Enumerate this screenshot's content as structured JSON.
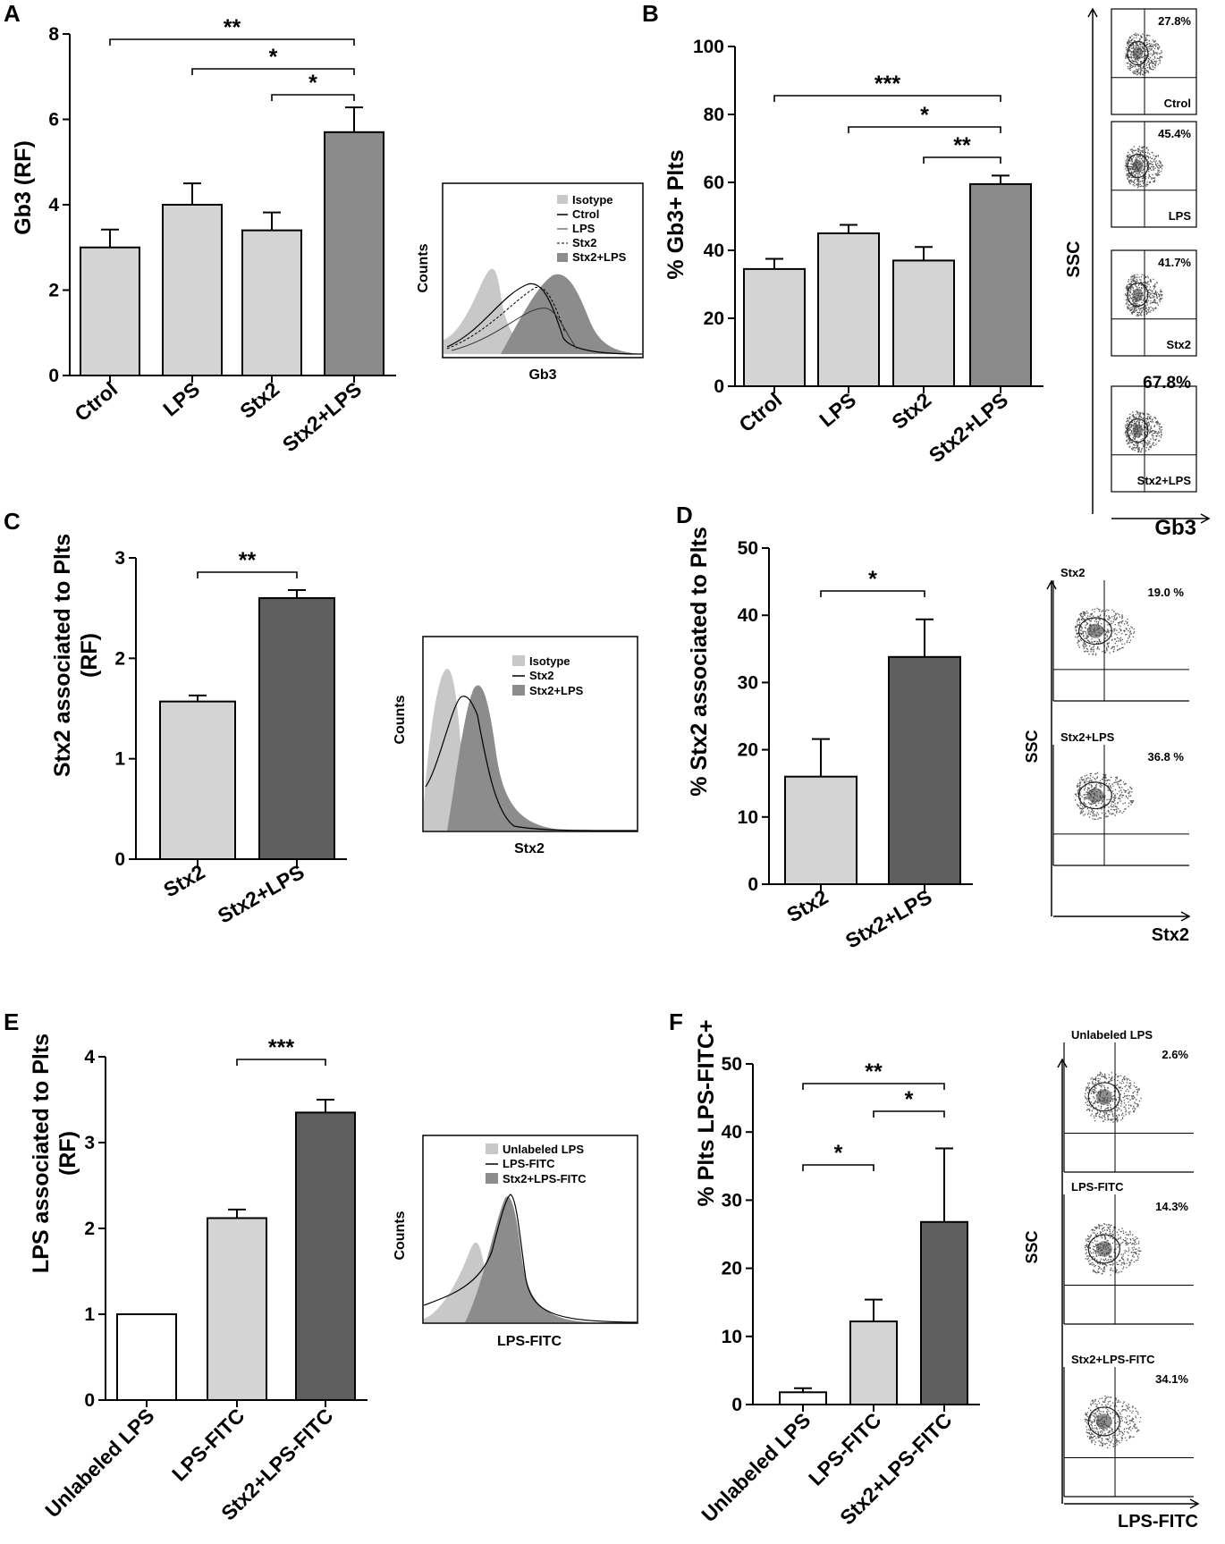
{
  "colors": {
    "light_bar": "#d4d4d4",
    "mid_bar": "#8a8a8a",
    "dark_bar": "#5e5e5e",
    "white_bar": "#ffffff",
    "isotype_fill": "#c8c8c8",
    "stx2lps_fill": "#8c8c8c"
  },
  "chart_data": [
    {
      "panel": "A",
      "type": "bar",
      "ylabel": "Gb3 (RF)",
      "categories": [
        "Ctrol",
        "LPS",
        "Stx2",
        "Stx2+LPS"
      ],
      "values": [
        3.0,
        4.0,
        3.4,
        5.7
      ],
      "errors": [
        0.42,
        0.5,
        0.42,
        0.58
      ],
      "fills": [
        "light",
        "light",
        "light",
        "mid"
      ],
      "ylim": [
        0,
        8
      ],
      "yticks": [
        "0",
        "2",
        "4",
        "6",
        "8"
      ],
      "significance": [
        {
          "from": 0,
          "to": 3,
          "label": "**"
        },
        {
          "from": 1,
          "to": 3,
          "label": "*"
        },
        {
          "from": 2,
          "to": 3,
          "label": "*"
        }
      ]
    },
    {
      "panel": "B",
      "type": "bar",
      "ylabel": "% Gb3+ Plts",
      "categories": [
        "Ctrol",
        "LPS",
        "Stx2",
        "Stx2+LPS"
      ],
      "values": [
        34.5,
        45.0,
        37.0,
        59.5
      ],
      "errors": [
        3.0,
        2.5,
        4.0,
        2.5
      ],
      "fills": [
        "light",
        "light",
        "light",
        "mid"
      ],
      "ylim": [
        0,
        100
      ],
      "yticks": [
        "0",
        "20",
        "40",
        "60",
        "80",
        "100"
      ],
      "significance": [
        {
          "from": 0,
          "to": 3,
          "label": "***"
        },
        {
          "from": 1,
          "to": 3,
          "label": "*"
        },
        {
          "from": 2,
          "to": 3,
          "label": "**"
        }
      ]
    },
    {
      "panel": "C",
      "type": "bar",
      "ylabel_line1": "Stx2 associated to Plts",
      "ylabel_line2": "(RF)",
      "categories": [
        "Stx2",
        "Stx2+LPS"
      ],
      "values": [
        1.57,
        2.6
      ],
      "errors": [
        0.06,
        0.08
      ],
      "fills": [
        "light",
        "dark"
      ],
      "ylim": [
        0,
        3
      ],
      "yticks": [
        "0",
        "1",
        "2",
        "3"
      ],
      "significance": [
        {
          "from": 0,
          "to": 1,
          "label": "**"
        }
      ]
    },
    {
      "panel": "D",
      "type": "bar",
      "ylabel": "% Stx2 associated to Plts",
      "categories": [
        "Stx2",
        "Stx2+LPS"
      ],
      "values": [
        16.0,
        33.8
      ],
      "errors": [
        5.6,
        5.6
      ],
      "fills": [
        "light",
        "dark"
      ],
      "ylim": [
        0,
        50
      ],
      "yticks": [
        "0",
        "10",
        "20",
        "30",
        "40",
        "50"
      ],
      "significance": [
        {
          "from": 0,
          "to": 1,
          "label": "*"
        }
      ]
    },
    {
      "panel": "E",
      "type": "bar",
      "ylabel_line1": "LPS associated to Plts",
      "ylabel_line2": "(RF)",
      "categories": [
        "Unlabeled LPS",
        "LPS-FITC",
        "Stx2+LPS-FITC"
      ],
      "values": [
        1.0,
        2.12,
        3.35
      ],
      "errors": [
        0,
        0.1,
        0.15
      ],
      "fills": [
        "white",
        "light",
        "dark"
      ],
      "ylim": [
        0,
        4
      ],
      "yticks": [
        "0",
        "1",
        "2",
        "3",
        "4"
      ],
      "significance": [
        {
          "from": 1,
          "to": 2,
          "label": "***"
        }
      ]
    },
    {
      "panel": "F",
      "type": "bar",
      "ylabel": "% Plts LPS-FITC+",
      "categories": [
        "Unlabeled LPS",
        "LPS-FITC",
        "Stx2+LPS-FITC"
      ],
      "values": [
        1.8,
        12.2,
        26.8
      ],
      "errors": [
        0.6,
        3.2,
        10.8
      ],
      "fills": [
        "white",
        "light",
        "dark"
      ],
      "ylim": [
        0,
        50
      ],
      "yticks": [
        "0",
        "10",
        "20",
        "30",
        "40",
        "50"
      ],
      "significance": [
        {
          "from": 0,
          "to": 2,
          "label": "**"
        },
        {
          "from": 1,
          "to": 2,
          "label": "*"
        },
        {
          "from": 0,
          "to": 1,
          "label": "*"
        }
      ]
    }
  ],
  "histograms": {
    "A": {
      "ylabel": "Counts",
      "xlabel": "Gb3",
      "legend": [
        "Isotype",
        "Ctrol",
        "LPS",
        "Stx2",
        "Stx2+LPS"
      ]
    },
    "C": {
      "ylabel": "Counts",
      "xlabel": "Stx2",
      "legend": [
        "Isotype",
        "Stx2",
        "Stx2+LPS"
      ]
    },
    "E": {
      "ylabel": "Counts",
      "xlabel": "LPS-FITC",
      "legend": [
        "Unlabeled LPS",
        "LPS-FITC",
        "Stx2+LPS-FITC"
      ]
    }
  },
  "dotplots": {
    "B": {
      "ylabel": "SSC",
      "xlabel": "Gb3",
      "plots": [
        {
          "label": "Ctrol",
          "pct": "27.8%"
        },
        {
          "label": "LPS",
          "pct": "45.4%"
        },
        {
          "label": "Stx2",
          "pct": "41.7%"
        },
        {
          "label": "Stx2+LPS",
          "pct": "67.8%"
        }
      ]
    },
    "D": {
      "ylabel": "SSC",
      "xlabel": "Stx2",
      "plots": [
        {
          "label": "Stx2",
          "pct": "19.0 %"
        },
        {
          "label": "Stx2+LPS",
          "pct": "36.8 %"
        }
      ]
    },
    "F": {
      "ylabel": "SSC",
      "xlabel": "LPS-FITC",
      "plots": [
        {
          "label": "Unlabeled LPS",
          "pct": "2.6%"
        },
        {
          "label": "LPS-FITC",
          "pct": "14.3%"
        },
        {
          "label": "Stx2+LPS-FITC",
          "pct": "34.1%"
        }
      ]
    }
  },
  "panel_letters": {
    "A": "A",
    "B": "B",
    "C": "C",
    "D": "D",
    "E": "E",
    "F": "F"
  }
}
